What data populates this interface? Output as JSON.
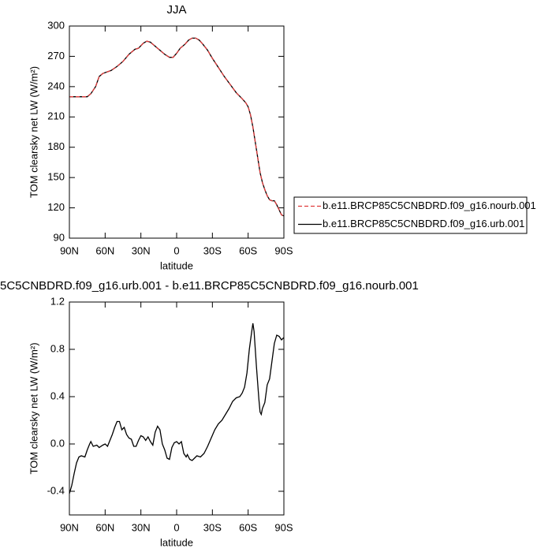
{
  "chart_data": [
    {
      "type": "line",
      "title": "JJA",
      "xlabel": "latitude",
      "ylabel": "TOM clearsky net LW (W/m²)",
      "x": [
        90,
        80,
        75,
        72,
        68,
        65,
        62,
        55,
        50,
        45,
        40,
        35,
        32,
        28,
        25,
        22,
        18,
        14,
        10,
        6,
        3,
        0,
        -3,
        -7,
        -10,
        -13,
        -16,
        -19,
        -22,
        -26,
        -30,
        -35,
        -40,
        -45,
        -50,
        -55,
        -58,
        -60,
        -62,
        -64,
        -66,
        -68,
        -70,
        -72,
        -74,
        -76,
        -78,
        -80,
        -82,
        -84,
        -86,
        -88,
        -90
      ],
      "series": [
        {
          "name": "b.e11.BRCP85C5CNBDRD.f09_g16.nourb.001",
          "color": "#e03c3c",
          "dashed": true,
          "values": [
            230,
            230,
            230,
            233,
            240,
            250,
            253,
            256,
            260,
            265,
            272,
            277,
            278,
            283,
            285,
            284,
            280,
            276,
            272,
            269,
            269,
            273,
            278,
            282,
            286,
            288,
            288,
            286,
            282,
            276,
            268,
            259,
            250,
            242,
            234,
            228,
            224,
            220,
            212,
            200,
            185,
            170,
            155,
            145,
            138,
            132,
            128,
            127,
            127,
            123,
            118,
            113,
            112
          ]
        },
        {
          "name": "b.e11.BRCP85C5CNBDRD.f09_g16.urb.001",
          "color": "#000000",
          "dashed": false,
          "values": [
            230,
            230,
            230,
            233,
            240,
            250,
            253,
            256,
            260,
            265,
            272,
            277,
            278,
            283,
            285,
            284,
            280,
            276,
            272,
            269,
            269,
            273,
            278,
            282,
            286,
            288,
            288,
            286,
            282,
            276,
            268,
            259,
            250,
            242,
            234,
            228,
            224,
            220,
            212,
            200,
            185,
            170,
            155,
            145,
            138,
            132,
            128,
            127,
            127,
            123,
            118,
            113,
            112
          ]
        }
      ],
      "xlim": [
        90,
        -90
      ],
      "xticks": [
        {
          "value": 90,
          "label": "90N"
        },
        {
          "value": 60,
          "label": "60N"
        },
        {
          "value": 30,
          "label": "30N"
        },
        0,
        {
          "value": -30,
          "label": "30S"
        },
        {
          "value": -60,
          "label": "60S"
        },
        {
          "value": -90,
          "label": "90S"
        }
      ],
      "ylim": [
        90,
        300
      ],
      "yticks": [
        90,
        120,
        150,
        180,
        210,
        240,
        270,
        300
      ],
      "legend": "right"
    },
    {
      "type": "line",
      "title": "5C5CNBDRD.f09_g16.urb.001 - b.e11.BRCP85C5CNBDRD.f09_g16.nourb.001",
      "xlabel": "latitude",
      "ylabel": "TOM clearsky net LW (W/m²)",
      "color": "#000000",
      "x": [
        90,
        88,
        86,
        84,
        82,
        80,
        77,
        75,
        73,
        72,
        70,
        67,
        65,
        62,
        60,
        58,
        56,
        54,
        52,
        50,
        48,
        46,
        44,
        42,
        40,
        38,
        36,
        34,
        32,
        30,
        28,
        26,
        24,
        22,
        20,
        18,
        16,
        14,
        12,
        10,
        8,
        6,
        4,
        2,
        0,
        -2,
        -4,
        -6,
        -8,
        -9,
        -11,
        -13,
        -15,
        -17,
        -20,
        -23,
        -26,
        -29,
        -32,
        -35,
        -38,
        -41,
        -44,
        -47,
        -50,
        -53,
        -55,
        -57,
        -59,
        -61,
        -63,
        -64,
        -65,
        -67,
        -69,
        -70,
        -71,
        -72,
        -74,
        -76,
        -78,
        -80,
        -82,
        -84,
        -86,
        -88,
        -90
      ],
      "values": [
        -0.42,
        -0.35,
        -0.25,
        -0.16,
        -0.11,
        -0.1,
        -0.11,
        -0.05,
        0.0,
        0.02,
        -0.02,
        -0.01,
        -0.03,
        -0.01,
        0.0,
        -0.02,
        0.03,
        0.08,
        0.14,
        0.19,
        0.19,
        0.12,
        0.14,
        0.08,
        0.05,
        0.04,
        -0.02,
        -0.02,
        0.03,
        0.07,
        0.06,
        0.03,
        0.06,
        0.02,
        -0.01,
        0.1,
        0.15,
        0.12,
        0.0,
        -0.05,
        -0.12,
        -0.13,
        -0.03,
        0.01,
        0.02,
        0.0,
        0.02,
        -0.08,
        -0.11,
        -0.09,
        -0.13,
        -0.14,
        -0.12,
        -0.1,
        -0.11,
        -0.08,
        -0.02,
        0.05,
        0.12,
        0.17,
        0.2,
        0.25,
        0.3,
        0.36,
        0.39,
        0.4,
        0.43,
        0.48,
        0.6,
        0.8,
        0.95,
        1.02,
        0.95,
        0.65,
        0.38,
        0.27,
        0.25,
        0.3,
        0.35,
        0.5,
        0.55,
        0.7,
        0.85,
        0.92,
        0.91,
        0.88,
        0.9
      ],
      "xlim": [
        90,
        -90
      ],
      "xticks": [
        {
          "value": 90,
          "label": "90N"
        },
        {
          "value": 60,
          "label": "60N"
        },
        {
          "value": 30,
          "label": "30N"
        },
        0,
        {
          "value": -30,
          "label": "30S"
        },
        {
          "value": -60,
          "label": "60S"
        },
        {
          "value": -90,
          "label": "90S"
        }
      ],
      "ylim": [
        -0.6,
        1.2
      ],
      "yticks": [
        {
          "value": -0.4,
          "label": "-0.4"
        },
        {
          "value": 0,
          "label": "0.0"
        },
        0.4,
        0.8,
        1.2
      ]
    }
  ]
}
